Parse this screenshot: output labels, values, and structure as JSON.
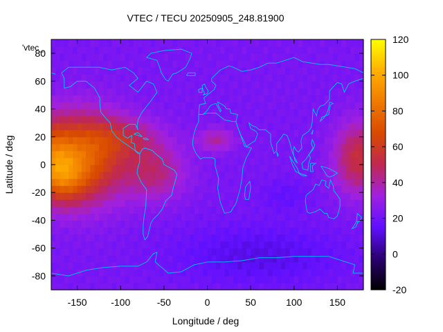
{
  "chart_data": {
    "type": "heatmap",
    "title": "VTEC / TECU 20250905_248.81900",
    "xlabel": "Longitude / deg",
    "ylabel": "Latitude / deg",
    "key_label": "'vtec_",
    "xlim": [
      -180,
      180
    ],
    "ylim": [
      -90,
      90
    ],
    "x_ticks": [
      -150,
      -100,
      -50,
      0,
      50,
      100,
      150
    ],
    "y_ticks": [
      -80,
      -60,
      -40,
      -20,
      0,
      20,
      40,
      60,
      80
    ],
    "colorbar": {
      "range": [
        -20,
        120
      ],
      "ticks": [
        -20,
        0,
        20,
        40,
        60,
        80,
        100,
        120
      ]
    },
    "grid": false,
    "legend": "top-left",
    "colormap": [
      "#000000",
      "#2a0070",
      "#6010ff",
      "#a020e0",
      "#c02850",
      "#d84a00",
      "#f07a00",
      "#ffb000",
      "#ffff00"
    ],
    "coastline_color": "#00c8ff",
    "field_baseline_tecu": 22,
    "field_features": [
      {
        "lon": -145,
        "lat": 5,
        "sigma_lon": 35,
        "sigma_lat": 22,
        "tecu": 52
      },
      {
        "lon": -165,
        "lat": -10,
        "sigma_lon": 18,
        "sigma_lat": 12,
        "tecu": 22
      },
      {
        "lon": -60,
        "lat": -5,
        "sigma_lon": 25,
        "sigma_lat": 14,
        "tecu": 22
      },
      {
        "lon": -95,
        "lat": 20,
        "sigma_lon": 30,
        "sigma_lat": 10,
        "tecu": 18
      },
      {
        "lon": 10,
        "lat": 18,
        "sigma_lon": 15,
        "sigma_lat": 6,
        "tecu": 18
      },
      {
        "lon": 175,
        "lat": 5,
        "sigma_lon": 20,
        "sigma_lat": 18,
        "tecu": 32
      },
      {
        "lon": -185,
        "lat": 5,
        "sigma_lon": 20,
        "sigma_lat": 18,
        "tecu": 32
      },
      {
        "lon": 60,
        "lat": -65,
        "sigma_lon": 70,
        "sigma_lat": 15,
        "tecu": -10
      },
      {
        "lon": 90,
        "lat": -22,
        "sigma_lon": 20,
        "sigma_lat": 8,
        "tecu": -6
      }
    ]
  }
}
